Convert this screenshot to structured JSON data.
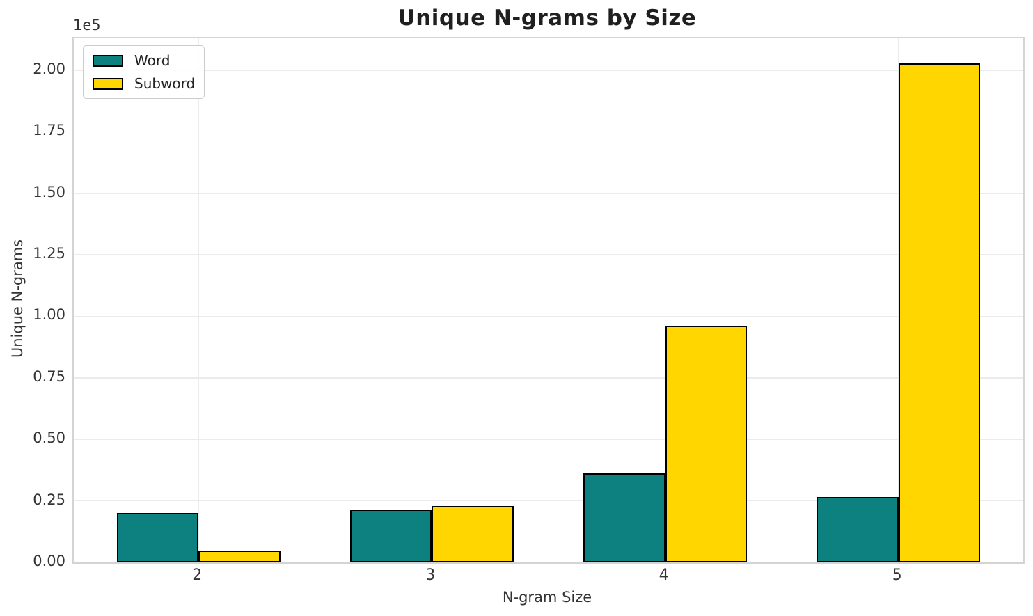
{
  "chart_data": {
    "type": "bar",
    "title": "Unique N-grams by Size",
    "xlabel": "N-gram Size",
    "ylabel": "Unique N-grams",
    "offset_text": "1e5",
    "categories": [
      "2",
      "3",
      "4",
      "5"
    ],
    "series": [
      {
        "name": "Word",
        "color": "#0d8080",
        "values": [
          20000,
          21400,
          36300,
          26500
        ]
      },
      {
        "name": "Subword",
        "color": "#ffd600",
        "values": [
          4700,
          22800,
          96300,
          202800
        ]
      }
    ],
    "bar_edge_color": "#000000",
    "ylim": [
      0,
      213000
    ],
    "ytick_step": 25000,
    "ytick_labels": [
      "0.00",
      "0.25",
      "0.50",
      "0.75",
      "1.00",
      "1.25",
      "1.50",
      "1.75",
      "2.00"
    ],
    "legend_position": "upper left",
    "grid": true,
    "grid_color": "#ebebeb",
    "spine_color": "#d4d4d4",
    "text_color": "#333333",
    "title_color": "#1f1f1f"
  }
}
